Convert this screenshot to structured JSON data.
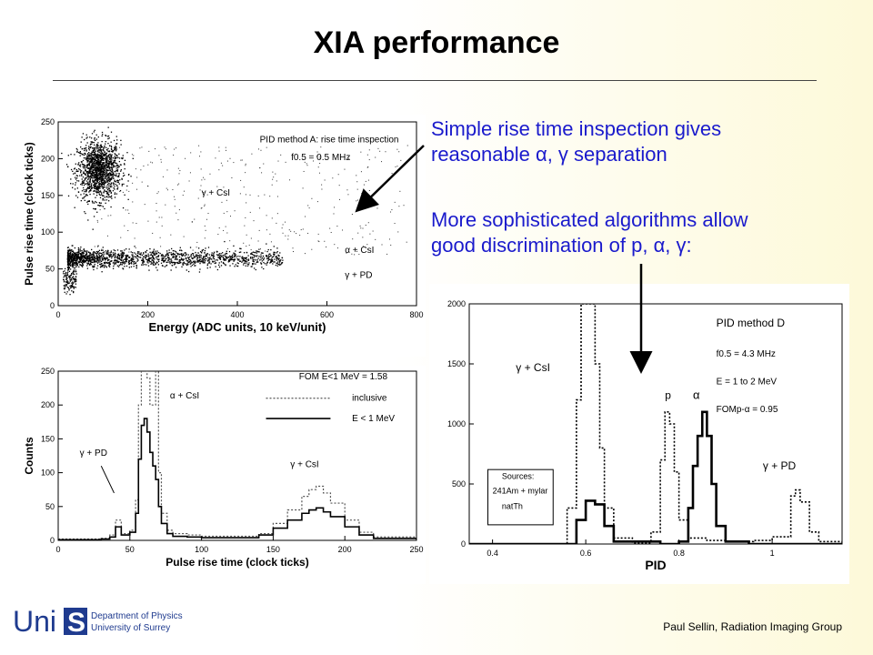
{
  "slide": {
    "title": "XIA performance",
    "bullet1_line1": "Simple rise time inspection gives",
    "bullet1_line2": "reasonable α, γ separation",
    "bullet2_line1": "More sophisticated algorithms allow",
    "bullet2_line2": "good discrimination of p, α, γ:",
    "footer": "Paul Sellin, Radiation Imaging Group",
    "logo": {
      "wordmark": "Uni",
      "letter": "S",
      "line1": "Department of Physics",
      "line2": "University of Surrey",
      "color": "#1f3b8f"
    },
    "accent_color": "#1a1acc"
  },
  "chart_data": [
    {
      "type": "scatter",
      "name": "top-left",
      "xlabel": "Energy  (ADC units, 10 keV/unit)",
      "ylabel": "Pulse rise time (clock ticks)",
      "xlim": [
        0,
        800
      ],
      "ylim": [
        0,
        250
      ],
      "xticks": [
        0,
        200,
        400,
        600,
        800
      ],
      "yticks": [
        0,
        50,
        100,
        150,
        200,
        250
      ],
      "annotations": [
        "PID method A: rise time inspection",
        "f0.5 = 0.5 MHz",
        "γ + CsI",
        "α + CsI",
        "γ + PD"
      ],
      "clusters": [
        {
          "label": "γ + CsI",
          "x_center": 90,
          "y_center": 185,
          "x_spread": 40,
          "y_spread": 25
        },
        {
          "label": "α + CsI",
          "x_range": [
            20,
            500
          ],
          "y_center": 65,
          "y_spread": 6
        },
        {
          "label": "γ + PD",
          "x_range": [
            10,
            40
          ],
          "y_center": 35,
          "y_spread": 8
        }
      ]
    },
    {
      "type": "line",
      "name": "bottom-left",
      "xlabel": "Pulse rise time (clock ticks)",
      "ylabel": "Counts",
      "xlim": [
        0,
        250
      ],
      "ylim": [
        0,
        250
      ],
      "xticks": [
        0,
        50,
        100,
        150,
        200,
        250
      ],
      "yticks": [
        0,
        50,
        100,
        150,
        200,
        250
      ],
      "legend": [
        "inclusive",
        "E < 1 MeV"
      ],
      "fom_text": "FOM E<1 MeV  = 1.58",
      "annotations": [
        "γ + PD",
        "α + CsI",
        "γ + CsI"
      ],
      "series": [
        {
          "name": "inclusive",
          "style": "dotted",
          "x": [
            0,
            30,
            36,
            40,
            44,
            50,
            54,
            56,
            58,
            60,
            62,
            64,
            66,
            68,
            70,
            72,
            76,
            80,
            90,
            100,
            120,
            140,
            150,
            160,
            170,
            175,
            180,
            185,
            190,
            200,
            210,
            220,
            250
          ],
          "values": [
            2,
            3,
            8,
            30,
            10,
            15,
            60,
            200,
            260,
            270,
            240,
            200,
            200,
            260,
            100,
            40,
            15,
            10,
            8,
            6,
            6,
            10,
            25,
            45,
            65,
            75,
            80,
            70,
            55,
            30,
            12,
            5,
            2
          ]
        },
        {
          "name": "E < 1 MeV",
          "style": "solid",
          "x": [
            0,
            30,
            36,
            40,
            44,
            50,
            54,
            56,
            58,
            60,
            62,
            64,
            66,
            68,
            70,
            72,
            76,
            80,
            90,
            100,
            120,
            140,
            150,
            160,
            170,
            175,
            180,
            185,
            190,
            200,
            210,
            220,
            250
          ],
          "values": [
            1,
            2,
            5,
            20,
            8,
            12,
            40,
            120,
            170,
            180,
            160,
            130,
            110,
            90,
            50,
            25,
            10,
            6,
            5,
            4,
            4,
            8,
            18,
            30,
            40,
            45,
            48,
            42,
            35,
            20,
            8,
            3,
            1
          ]
        }
      ]
    },
    {
      "type": "line",
      "name": "right",
      "xlabel": "PID",
      "ylabel": "",
      "xlim": [
        0.35,
        1.15
      ],
      "ylim": [
        0,
        2000
      ],
      "xticks": [
        0.4,
        0.6,
        0.8,
        1.0
      ],
      "yticks": [
        0,
        500,
        1000,
        1500,
        2000
      ],
      "annotations": [
        "PID method D",
        "f0.5 = 4.3 MHz",
        "E = 1 to 2 MeV",
        "FOMp-α = 0.95",
        "γ + CsI",
        "p",
        "α",
        "γ + PD",
        "Sources:",
        "241Am + mylar",
        "natTh"
      ],
      "series": [
        {
          "name": "dotted",
          "style": "dotted",
          "x": [
            0.35,
            0.54,
            0.56,
            0.58,
            0.59,
            0.6,
            0.61,
            0.62,
            0.63,
            0.64,
            0.66,
            0.7,
            0.74,
            0.76,
            0.77,
            0.78,
            0.79,
            0.8,
            0.82,
            0.86,
            0.9,
            0.96,
            1.0,
            1.04,
            1.05,
            1.06,
            1.08,
            1.1,
            1.15
          ],
          "values": [
            0,
            0,
            300,
            1200,
            2000,
            2000,
            2000,
            1500,
            800,
            300,
            50,
            10,
            100,
            700,
            1100,
            1000,
            600,
            200,
            50,
            30,
            20,
            30,
            60,
            400,
            450,
            350,
            100,
            20,
            0
          ]
        },
        {
          "name": "solid",
          "style": "solid",
          "x": [
            0.35,
            0.56,
            0.58,
            0.6,
            0.62,
            0.64,
            0.66,
            0.76,
            0.8,
            0.82,
            0.83,
            0.84,
            0.85,
            0.86,
            0.87,
            0.88,
            0.9,
            0.95,
            1.15
          ],
          "values": [
            0,
            0,
            200,
            360,
            330,
            150,
            20,
            0,
            20,
            300,
            650,
            900,
            1100,
            900,
            500,
            150,
            20,
            0,
            0
          ]
        }
      ]
    }
  ]
}
